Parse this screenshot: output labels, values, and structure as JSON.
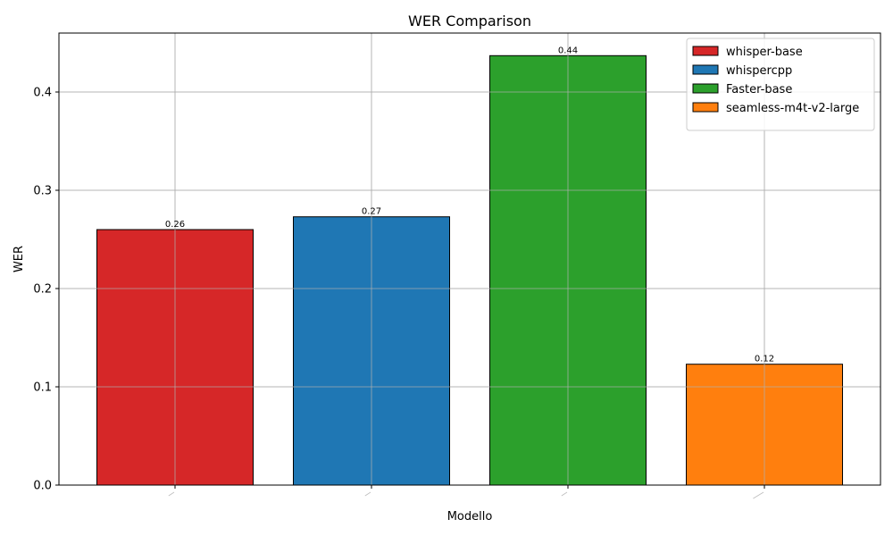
{
  "chart_data": {
    "type": "bar",
    "title": "WER Comparison",
    "xlabel": "Modello",
    "ylabel": "WER",
    "categories": [
      "whisper-base",
      "whispercpp",
      "Faster-base",
      "seamless-m4t-v2-large"
    ],
    "values": [
      0.26,
      0.273,
      0.437,
      0.123
    ],
    "data_labels": [
      "0.26",
      "0.27",
      "0.44",
      "0.12"
    ],
    "colors": [
      "#d62728",
      "#1f77b4",
      "#2ca02c",
      "#ff7f0e"
    ],
    "ylim": [
      0,
      0.46
    ],
    "yticks": [
      0.0,
      0.1,
      0.2,
      0.3,
      0.4
    ],
    "ytick_labels": [
      "0.0",
      "0.1",
      "0.2",
      "0.3",
      "0.4"
    ],
    "grid": true,
    "legend": {
      "placement": "top-right",
      "entries": [
        "whisper-base",
        "whispercpp",
        "Faster-base",
        "seamless-m4t-v2-large"
      ]
    }
  }
}
